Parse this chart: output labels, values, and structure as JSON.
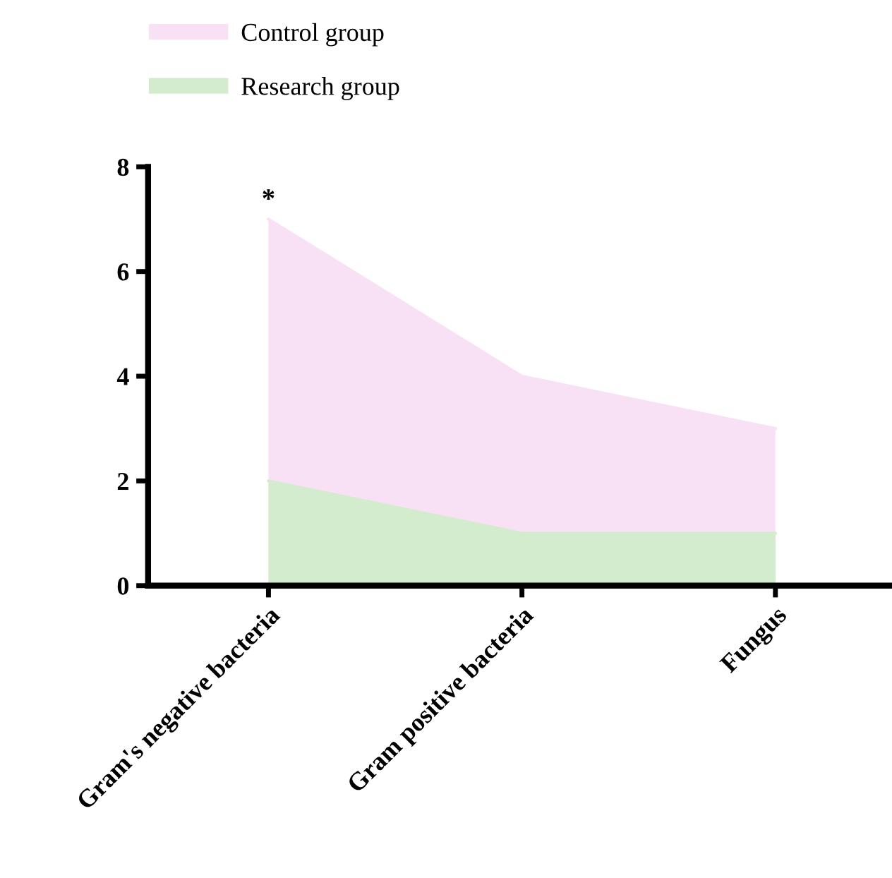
{
  "chart_data": {
    "type": "area",
    "categories": [
      "Gram's negative bacteria",
      "Gram positive bacteria",
      "Fungus"
    ],
    "series": [
      {
        "name": "Control group",
        "color": "#f9e1f5",
        "values": [
          7,
          4,
          3
        ]
      },
      {
        "name": "Research group",
        "color": "#d3ecce",
        "values": [
          2,
          1,
          1
        ]
      }
    ],
    "ylim": [
      0,
      8
    ],
    "yticks": [
      0,
      2,
      4,
      6,
      8
    ],
    "grid": false,
    "legend": "top left",
    "annotations": [
      {
        "text": "*",
        "x": "Gram's negative bacteria",
        "y": 7
      }
    ]
  }
}
